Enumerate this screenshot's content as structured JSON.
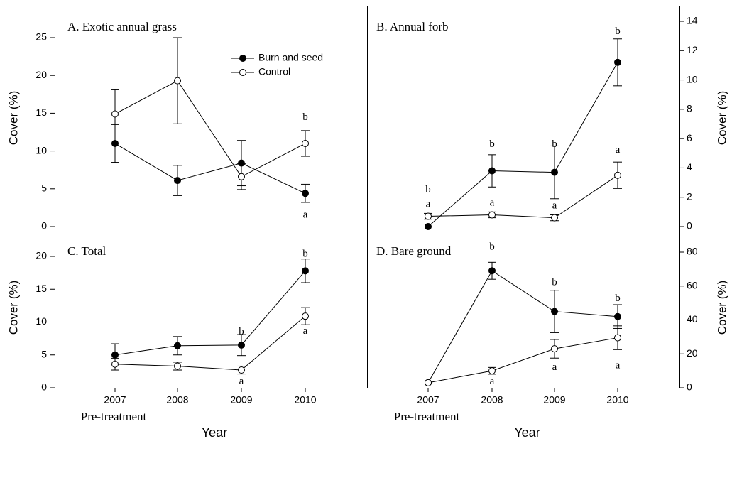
{
  "chart_data": [
    {
      "type": "line",
      "panel": "A",
      "title": "A. Exotic annual grass",
      "ylabel": "Cover (%)",
      "ylim": [
        0,
        25
      ],
      "yticks": [
        0,
        5,
        10,
        15,
        20,
        25
      ],
      "y_axis_side": "left",
      "categories": [
        "2007",
        "2008",
        "2009",
        "2010"
      ],
      "legend": {
        "placement": "top-center",
        "entries": [
          "Burn and seed",
          "Control"
        ]
      },
      "series": [
        {
          "name": "Burn and seed",
          "marker": "filled",
          "values": [
            11.0,
            6.1,
            8.4,
            4.4
          ],
          "error": [
            2.5,
            2.0,
            3.0,
            1.2
          ]
        },
        {
          "name": "Control",
          "marker": "open",
          "values": [
            14.9,
            19.3,
            6.6,
            11.0
          ],
          "error": [
            3.2,
            5.7,
            1.7,
            1.7
          ]
        }
      ],
      "annotations": [
        {
          "text": "b",
          "category": "2010",
          "y": 14.4
        },
        {
          "text": "a",
          "category": "2010",
          "y": 1.5
        }
      ]
    },
    {
      "type": "line",
      "panel": "B",
      "title": "B. Annual forb",
      "ylabel": "Cover (%)",
      "ylim": [
        0,
        14
      ],
      "yticks": [
        0,
        2,
        4,
        6,
        8,
        10,
        12,
        14
      ],
      "y_axis_side": "right",
      "categories": [
        "2007",
        "2008",
        "2009",
        "2010"
      ],
      "series": [
        {
          "name": "Burn and seed",
          "marker": "filled",
          "values": [
            0.0,
            3.8,
            3.7,
            11.2
          ],
          "error": [
            0.0,
            1.1,
            1.8,
            1.6
          ]
        },
        {
          "name": "Control",
          "marker": "open",
          "values": [
            0.7,
            0.8,
            0.6,
            3.5
          ],
          "error": [
            0.2,
            0.2,
            0.2,
            0.9
          ]
        }
      ],
      "annotations": [
        {
          "text": "b",
          "category": "2007",
          "y": 2.5
        },
        {
          "text": "a",
          "category": "2007",
          "y": 1.5
        },
        {
          "text": "b",
          "category": "2008",
          "y": 5.6
        },
        {
          "text": "a",
          "category": "2008",
          "y": 1.6
        },
        {
          "text": "b",
          "category": "2009",
          "y": 5.6
        },
        {
          "text": "a",
          "category": "2009",
          "y": 1.4
        },
        {
          "text": "b",
          "category": "2010",
          "y": 13.3
        },
        {
          "text": "a",
          "category": "2010",
          "y": 5.2
        }
      ]
    },
    {
      "type": "line",
      "panel": "C",
      "title": "C. Total",
      "ylabel": "Cover (%)",
      "xlabel": "Year",
      "ylim": [
        0,
        20
      ],
      "yticks": [
        0,
        5,
        10,
        15,
        20
      ],
      "y_axis_side": "left",
      "categories": [
        "2007",
        "2008",
        "2009",
        "2010"
      ],
      "x_sublabel": "Pre-treatment",
      "series": [
        {
          "name": "Burn and seed",
          "marker": "filled",
          "values": [
            5.0,
            6.4,
            6.5,
            17.8
          ],
          "error": [
            1.7,
            1.4,
            1.6,
            1.8
          ]
        },
        {
          "name": "Control",
          "marker": "open",
          "values": [
            3.6,
            3.3,
            2.7,
            10.9
          ],
          "error": [
            0.9,
            0.6,
            0.6,
            1.3
          ]
        }
      ],
      "annotations": [
        {
          "text": "b",
          "category": "2009",
          "y": 8.5
        },
        {
          "text": "a",
          "category": "2009",
          "y": 0.9
        },
        {
          "text": "b",
          "category": "2010",
          "y": 20.3
        },
        {
          "text": "a",
          "category": "2010",
          "y": 8.6
        }
      ]
    },
    {
      "type": "line",
      "panel": "D",
      "title": "D. Bare ground",
      "ylabel": "Cover (%)",
      "xlabel": "Year",
      "ylim": [
        0,
        80
      ],
      "yticks": [
        0,
        20,
        40,
        60,
        80
      ],
      "y_axis_side": "right",
      "categories": [
        "2007",
        "2008",
        "2009",
        "2010"
      ],
      "x_sublabel": "Pre-treatment",
      "series": [
        {
          "name": "Burn and seed",
          "marker": "filled",
          "values": [
            3,
            69,
            45,
            42
          ],
          "error": [
            0,
            5,
            12.5,
            7
          ]
        },
        {
          "name": "Control",
          "marker": "open",
          "values": [
            3,
            10,
            23,
            29.5
          ],
          "error": [
            0,
            2,
            5.5,
            7
          ]
        }
      ],
      "annotations": [
        {
          "text": "b",
          "category": "2008",
          "y": 83
        },
        {
          "text": "a",
          "category": "2008",
          "y": 3.5
        },
        {
          "text": "b",
          "category": "2009",
          "y": 62
        },
        {
          "text": "a",
          "category": "2009",
          "y": 12
        },
        {
          "text": "b",
          "category": "2010",
          "y": 52.5
        },
        {
          "text": "a",
          "category": "2010",
          "y": 13
        }
      ]
    }
  ]
}
